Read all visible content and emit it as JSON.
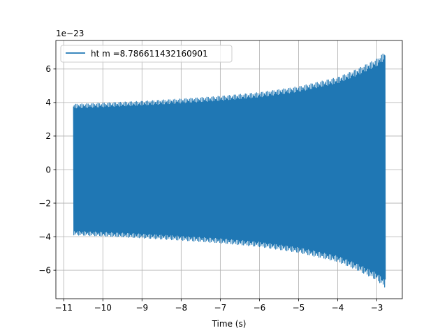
{
  "chart_data": {
    "type": "line",
    "title": "",
    "xlabel": "Time (s)",
    "ylabel": "",
    "y_offset_label": "1e−23",
    "xlim": [
      -11.2,
      -2.35
    ],
    "ylim": [
      -7.7,
      7.7
    ],
    "xticks": [
      -11,
      -10,
      -9,
      -8,
      -7,
      -6,
      -5,
      -4,
      -3
    ],
    "xtick_labels": [
      "−11",
      "−10",
      "−9",
      "−8",
      "−7",
      "−6",
      "−5",
      "−4",
      "−3"
    ],
    "yticks": [
      -6,
      -4,
      -2,
      0,
      2,
      4,
      6
    ],
    "ytick_labels": [
      "−6",
      "−4",
      "−2",
      "0",
      "2",
      "4",
      "6"
    ],
    "grid": true,
    "legend": {
      "placement": "upper-left",
      "entries": [
        "ht m =8.786611432160901"
      ]
    },
    "series": [
      {
        "name": "ht m =8.786611432160901",
        "color": "#1f77b4",
        "signal": {
          "kind": "chirp",
          "t_start": -10.75,
          "t_end": -2.78,
          "amplitude_envelope": [
            [
              -10.75,
              3.9
            ],
            [
              -10.0,
              3.97
            ],
            [
              -9.0,
              4.08
            ],
            [
              -8.0,
              4.22
            ],
            [
              -7.0,
              4.38
            ],
            [
              -6.0,
              4.6
            ],
            [
              -5.0,
              4.95
            ],
            [
              -4.0,
              5.5
            ],
            [
              -3.5,
              6.0
            ],
            [
              -3.0,
              6.6
            ],
            [
              -2.78,
              7.05
            ]
          ]
        }
      }
    ]
  }
}
